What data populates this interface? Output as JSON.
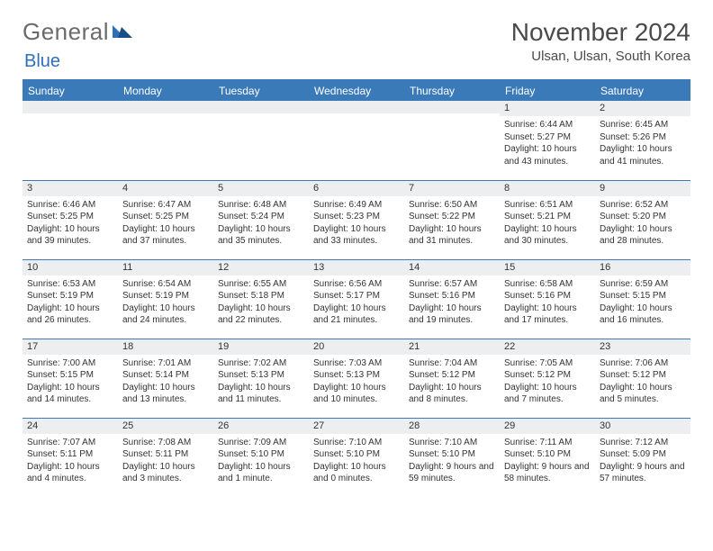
{
  "logo": {
    "general": "General",
    "blue": "Blue"
  },
  "title": {
    "month": "November 2024",
    "location": "Ulsan, Ulsan, South Korea"
  },
  "colors": {
    "accent": "#3a7ab8",
    "header_bg": "#3a7ab8",
    "daynum_bg": "#eceef0",
    "text": "#333333",
    "logo_gray": "#6b6b6b",
    "logo_blue": "#2d6fb8"
  },
  "weekdays": [
    "Sunday",
    "Monday",
    "Tuesday",
    "Wednesday",
    "Thursday",
    "Friday",
    "Saturday"
  ],
  "weeks": [
    [
      {
        "n": "",
        "sr": "",
        "ss": "",
        "dl": ""
      },
      {
        "n": "",
        "sr": "",
        "ss": "",
        "dl": ""
      },
      {
        "n": "",
        "sr": "",
        "ss": "",
        "dl": ""
      },
      {
        "n": "",
        "sr": "",
        "ss": "",
        "dl": ""
      },
      {
        "n": "",
        "sr": "",
        "ss": "",
        "dl": ""
      },
      {
        "n": "1",
        "sr": "Sunrise: 6:44 AM",
        "ss": "Sunset: 5:27 PM",
        "dl": "Daylight: 10 hours and 43 minutes."
      },
      {
        "n": "2",
        "sr": "Sunrise: 6:45 AM",
        "ss": "Sunset: 5:26 PM",
        "dl": "Daylight: 10 hours and 41 minutes."
      }
    ],
    [
      {
        "n": "3",
        "sr": "Sunrise: 6:46 AM",
        "ss": "Sunset: 5:25 PM",
        "dl": "Daylight: 10 hours and 39 minutes."
      },
      {
        "n": "4",
        "sr": "Sunrise: 6:47 AM",
        "ss": "Sunset: 5:25 PM",
        "dl": "Daylight: 10 hours and 37 minutes."
      },
      {
        "n": "5",
        "sr": "Sunrise: 6:48 AM",
        "ss": "Sunset: 5:24 PM",
        "dl": "Daylight: 10 hours and 35 minutes."
      },
      {
        "n": "6",
        "sr": "Sunrise: 6:49 AM",
        "ss": "Sunset: 5:23 PM",
        "dl": "Daylight: 10 hours and 33 minutes."
      },
      {
        "n": "7",
        "sr": "Sunrise: 6:50 AM",
        "ss": "Sunset: 5:22 PM",
        "dl": "Daylight: 10 hours and 31 minutes."
      },
      {
        "n": "8",
        "sr": "Sunrise: 6:51 AM",
        "ss": "Sunset: 5:21 PM",
        "dl": "Daylight: 10 hours and 30 minutes."
      },
      {
        "n": "9",
        "sr": "Sunrise: 6:52 AM",
        "ss": "Sunset: 5:20 PM",
        "dl": "Daylight: 10 hours and 28 minutes."
      }
    ],
    [
      {
        "n": "10",
        "sr": "Sunrise: 6:53 AM",
        "ss": "Sunset: 5:19 PM",
        "dl": "Daylight: 10 hours and 26 minutes."
      },
      {
        "n": "11",
        "sr": "Sunrise: 6:54 AM",
        "ss": "Sunset: 5:19 PM",
        "dl": "Daylight: 10 hours and 24 minutes."
      },
      {
        "n": "12",
        "sr": "Sunrise: 6:55 AM",
        "ss": "Sunset: 5:18 PM",
        "dl": "Daylight: 10 hours and 22 minutes."
      },
      {
        "n": "13",
        "sr": "Sunrise: 6:56 AM",
        "ss": "Sunset: 5:17 PM",
        "dl": "Daylight: 10 hours and 21 minutes."
      },
      {
        "n": "14",
        "sr": "Sunrise: 6:57 AM",
        "ss": "Sunset: 5:16 PM",
        "dl": "Daylight: 10 hours and 19 minutes."
      },
      {
        "n": "15",
        "sr": "Sunrise: 6:58 AM",
        "ss": "Sunset: 5:16 PM",
        "dl": "Daylight: 10 hours and 17 minutes."
      },
      {
        "n": "16",
        "sr": "Sunrise: 6:59 AM",
        "ss": "Sunset: 5:15 PM",
        "dl": "Daylight: 10 hours and 16 minutes."
      }
    ],
    [
      {
        "n": "17",
        "sr": "Sunrise: 7:00 AM",
        "ss": "Sunset: 5:15 PM",
        "dl": "Daylight: 10 hours and 14 minutes."
      },
      {
        "n": "18",
        "sr": "Sunrise: 7:01 AM",
        "ss": "Sunset: 5:14 PM",
        "dl": "Daylight: 10 hours and 13 minutes."
      },
      {
        "n": "19",
        "sr": "Sunrise: 7:02 AM",
        "ss": "Sunset: 5:13 PM",
        "dl": "Daylight: 10 hours and 11 minutes."
      },
      {
        "n": "20",
        "sr": "Sunrise: 7:03 AM",
        "ss": "Sunset: 5:13 PM",
        "dl": "Daylight: 10 hours and 10 minutes."
      },
      {
        "n": "21",
        "sr": "Sunrise: 7:04 AM",
        "ss": "Sunset: 5:12 PM",
        "dl": "Daylight: 10 hours and 8 minutes."
      },
      {
        "n": "22",
        "sr": "Sunrise: 7:05 AM",
        "ss": "Sunset: 5:12 PM",
        "dl": "Daylight: 10 hours and 7 minutes."
      },
      {
        "n": "23",
        "sr": "Sunrise: 7:06 AM",
        "ss": "Sunset: 5:12 PM",
        "dl": "Daylight: 10 hours and 5 minutes."
      }
    ],
    [
      {
        "n": "24",
        "sr": "Sunrise: 7:07 AM",
        "ss": "Sunset: 5:11 PM",
        "dl": "Daylight: 10 hours and 4 minutes."
      },
      {
        "n": "25",
        "sr": "Sunrise: 7:08 AM",
        "ss": "Sunset: 5:11 PM",
        "dl": "Daylight: 10 hours and 3 minutes."
      },
      {
        "n": "26",
        "sr": "Sunrise: 7:09 AM",
        "ss": "Sunset: 5:10 PM",
        "dl": "Daylight: 10 hours and 1 minute."
      },
      {
        "n": "27",
        "sr": "Sunrise: 7:10 AM",
        "ss": "Sunset: 5:10 PM",
        "dl": "Daylight: 10 hours and 0 minutes."
      },
      {
        "n": "28",
        "sr": "Sunrise: 7:10 AM",
        "ss": "Sunset: 5:10 PM",
        "dl": "Daylight: 9 hours and 59 minutes."
      },
      {
        "n": "29",
        "sr": "Sunrise: 7:11 AM",
        "ss": "Sunset: 5:10 PM",
        "dl": "Daylight: 9 hours and 58 minutes."
      },
      {
        "n": "30",
        "sr": "Sunrise: 7:12 AM",
        "ss": "Sunset: 5:09 PM",
        "dl": "Daylight: 9 hours and 57 minutes."
      }
    ]
  ]
}
